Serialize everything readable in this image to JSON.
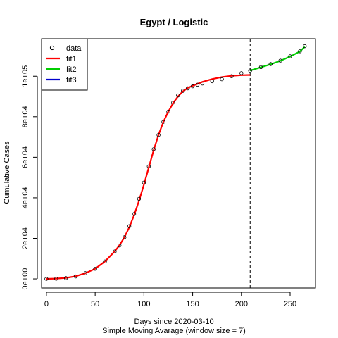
{
  "chart_data": {
    "type": "scatter",
    "title": "Egypt / Logistic",
    "xlabel": "Days since 2020-03-10",
    "sublabel": "Simple Moving Avarage (window size = 7)",
    "ylabel": "Cumulative Cases",
    "xlim": [
      -5,
      276
    ],
    "ylim": [
      -4500,
      118500
    ],
    "x_ticks": [
      0,
      50,
      100,
      150,
      200,
      250
    ],
    "x_tick_labels": [
      "0",
      "50",
      "100",
      "150",
      "200",
      "250"
    ],
    "y_ticks": [
      0,
      20000,
      40000,
      60000,
      80000,
      100000
    ],
    "y_tick_labels": [
      "0e+00",
      "2e+04",
      "4e+04",
      "6e+04",
      "8e+04",
      "1e+05"
    ],
    "vline_x": 209,
    "legend": {
      "position": "top-left",
      "entries": [
        {
          "label": "data",
          "kind": "point",
          "color": "#000000"
        },
        {
          "label": "fit1",
          "kind": "line",
          "color": "#ff0000"
        },
        {
          "label": "fit2",
          "kind": "line",
          "color": "#00cd00"
        },
        {
          "label": "fit3",
          "kind": "line",
          "color": "#0000cd"
        }
      ]
    },
    "data_points": {
      "x": [
        0,
        10,
        20,
        30,
        40,
        50,
        60,
        70,
        75,
        80,
        85,
        90,
        95,
        100,
        105,
        110,
        115,
        120,
        125,
        130,
        135,
        140,
        145,
        150,
        155,
        160,
        170,
        180,
        190,
        200,
        209,
        220,
        230,
        240,
        250,
        260,
        265
      ],
      "y": [
        0,
        100,
        400,
        1200,
        2800,
        5000,
        8600,
        13500,
        16500,
        20500,
        26000,
        32000,
        39500,
        47500,
        55500,
        64000,
        71000,
        77500,
        82500,
        87000,
        90500,
        92800,
        94000,
        95000,
        95800,
        96400,
        97500,
        98500,
        100000,
        101500,
        102800,
        104500,
        106000,
        107700,
        109800,
        112300,
        114800
      ]
    },
    "series": [
      {
        "name": "fit1",
        "color": "#ff0000",
        "x": [
          0,
          10,
          20,
          30,
          40,
          50,
          60,
          70,
          75,
          80,
          85,
          90,
          95,
          100,
          105,
          110,
          115,
          120,
          125,
          130,
          135,
          140,
          145,
          150,
          160,
          170,
          180,
          190,
          200,
          209
        ],
        "y": [
          0,
          150,
          500,
          1300,
          2800,
          5000,
          8600,
          13500,
          16600,
          20500,
          25500,
          31500,
          38500,
          46500,
          55000,
          63500,
          71000,
          77500,
          82500,
          86800,
          90000,
          92500,
          94200,
          95300,
          97200,
          98600,
          99600,
          100200,
          100500,
          100600
        ]
      },
      {
        "name": "fit2",
        "color": "#00cd00",
        "x": [
          209,
          220,
          230,
          240,
          250,
          260,
          265
        ],
        "y": [
          102800,
          104400,
          105900,
          107600,
          109700,
          112200,
          114500
        ]
      }
    ]
  }
}
